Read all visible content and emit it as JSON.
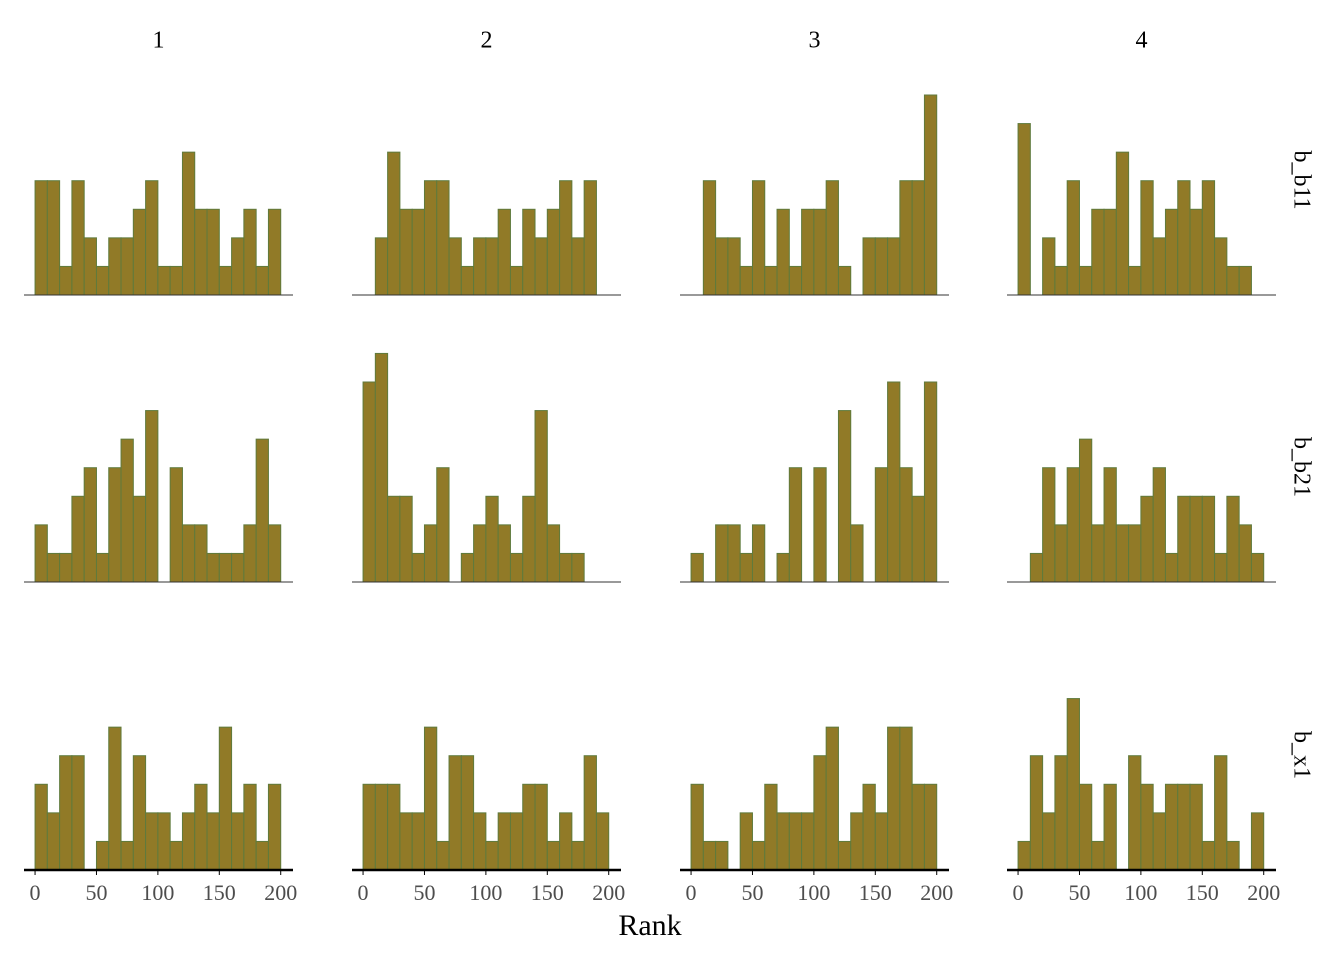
{
  "chart_data": {
    "type": "histogram",
    "xlabel": "Rank",
    "col_labels": [
      "1",
      "2",
      "3",
      "4"
    ],
    "row_labels": [
      "b_b11",
      "b_b21",
      "b_x1"
    ],
    "bins": [
      0,
      10,
      20,
      30,
      40,
      50,
      60,
      70,
      80,
      90,
      100,
      110,
      120,
      130,
      140,
      150,
      160,
      170,
      180,
      190,
      200
    ],
    "xlim": [
      -9,
      210
    ],
    "xticks": [
      0,
      50,
      100,
      150,
      200
    ],
    "ylim": [
      0,
      8.4
    ],
    "color": "#917a27",
    "edgecolor": "#5f7a3c",
    "panels": [
      [
        [
          4,
          4,
          1,
          4,
          2,
          1,
          2,
          2,
          3,
          4,
          1,
          1,
          5,
          3,
          3,
          1,
          2,
          3,
          1,
          3
        ],
        [
          0,
          2,
          5,
          3,
          3,
          4,
          4,
          2,
          1,
          2,
          2,
          3,
          1,
          3,
          2,
          3,
          4,
          2,
          4,
          0
        ],
        [
          0,
          4,
          2,
          2,
          1,
          4,
          1,
          3,
          1,
          3,
          3,
          4,
          1,
          0,
          2,
          2,
          2,
          4,
          4,
          7
        ],
        [
          6,
          0,
          2,
          1,
          4,
          1,
          3,
          3,
          5,
          1,
          4,
          2,
          3,
          4,
          3,
          4,
          2,
          1,
          1,
          0
        ]
      ],
      [
        [
          2,
          1,
          1,
          3,
          4,
          1,
          4,
          5,
          3,
          6,
          0,
          4,
          2,
          2,
          1,
          1,
          1,
          2,
          5,
          2
        ],
        [
          7,
          8,
          3,
          3,
          1,
          2,
          4,
          0,
          1,
          2,
          3,
          2,
          1,
          3,
          6,
          2,
          1,
          1,
          0,
          0
        ],
        [
          1,
          0,
          2,
          2,
          1,
          2,
          0,
          1,
          4,
          0,
          4,
          0,
          6,
          2,
          0,
          4,
          7,
          4,
          3,
          7
        ],
        [
          0,
          1,
          4,
          2,
          4,
          5,
          2,
          4,
          2,
          2,
          3,
          4,
          1,
          3,
          3,
          3,
          1,
          3,
          2,
          1
        ]
      ],
      [
        [
          3,
          2,
          4,
          4,
          0,
          1,
          5,
          1,
          4,
          2,
          2,
          1,
          2,
          3,
          2,
          5,
          2,
          3,
          1,
          3
        ],
        [
          3,
          3,
          3,
          2,
          2,
          5,
          1,
          4,
          4,
          2,
          1,
          2,
          2,
          3,
          3,
          1,
          2,
          1,
          4,
          2
        ],
        [
          3,
          1,
          1,
          0,
          2,
          1,
          3,
          2,
          2,
          2,
          4,
          5,
          1,
          2,
          3,
          2,
          5,
          5,
          3,
          3
        ],
        [
          1,
          4,
          2,
          4,
          6,
          3,
          1,
          3,
          0,
          4,
          3,
          2,
          3,
          3,
          3,
          1,
          4,
          1,
          0,
          2
        ]
      ]
    ]
  }
}
